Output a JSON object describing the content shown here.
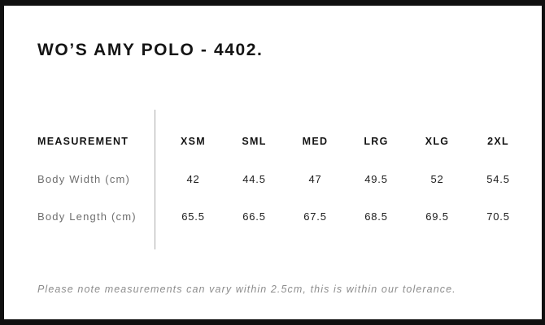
{
  "page": {
    "title": "WO’S AMY POLO - 4402.",
    "note": "Please note measurements can vary within 2.5cm, this is within our tolerance."
  },
  "size_chart": {
    "header_label": "MEASUREMENT",
    "sizes": [
      "XSM",
      "SML",
      "MED",
      "LRG",
      "XLG",
      "2XL"
    ],
    "rows": [
      {
        "label": "Body Width (cm)",
        "values": [
          "42",
          "44.5",
          "47",
          "49.5",
          "52",
          "54.5"
        ]
      },
      {
        "label": "Body Length (cm)",
        "values": [
          "65.5",
          "66.5",
          "67.5",
          "68.5",
          "69.5",
          "70.5"
        ]
      }
    ]
  },
  "chart_data": {
    "type": "table",
    "title": "WO’S AMY POLO - 4402.",
    "columns": [
      "MEASUREMENT",
      "XSM",
      "SML",
      "MED",
      "LRG",
      "XLG",
      "2XL"
    ],
    "rows": [
      [
        "Body Width (cm)",
        42,
        44.5,
        47,
        49.5,
        52,
        54.5
      ],
      [
        "Body Length (cm)",
        65.5,
        66.5,
        67.5,
        68.5,
        69.5,
        70.5
      ]
    ],
    "note": "Please note measurements can vary within 2.5cm, this is within our tolerance."
  },
  "colors": {
    "frame": "#101010",
    "title_text": "#141414",
    "header_text": "#141414",
    "row_label_text": "#6e6e6e",
    "value_text": "#1d1d1d",
    "divider": "#ababab",
    "note_text": "#8d8d8d",
    "background": "#ffffff"
  }
}
